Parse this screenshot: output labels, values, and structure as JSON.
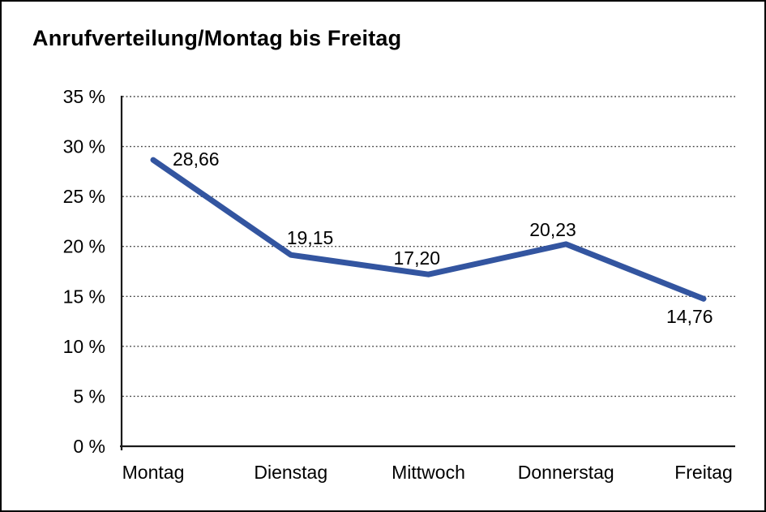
{
  "window": {
    "background_color": "#ffffff",
    "border_color": "#000000"
  },
  "chart_data": {
    "type": "line",
    "title": "Anrufverteilung/Montag bis Freitag",
    "categories": [
      "Montag",
      "Dienstag",
      "Mittwoch",
      "Donnerstag",
      "Freitag"
    ],
    "series": [
      {
        "name": "Anrufverteilung",
        "values": [
          28.66,
          19.15,
          17.2,
          20.23,
          14.76
        ],
        "value_labels": [
          "28,66",
          "19,15",
          "17,20",
          "20,23",
          "14,76"
        ]
      }
    ],
    "xlabel": "",
    "ylabel": "",
    "ylim": [
      0,
      35
    ],
    "ytick_step": 5,
    "ytick_labels": [
      "0 %",
      "5 %",
      "10 %",
      "15 %",
      "20 %",
      "25 %",
      "30 %",
      "35 %"
    ],
    "grid": "horizontal-dotted",
    "legend_position": "none",
    "line_color": "#3355A0",
    "axis_color": "#1a1a1a",
    "gridline_color": "#404040",
    "label_color": "#000000"
  }
}
